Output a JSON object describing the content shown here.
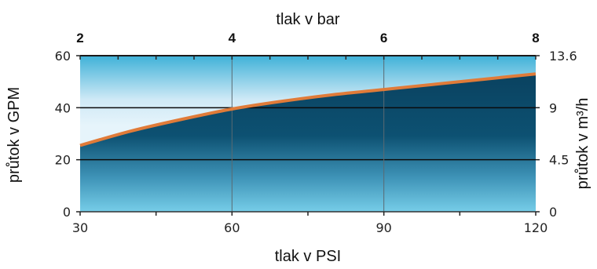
{
  "colors": {
    "curve": "#e07b39",
    "fill_dark": "#0c4a68",
    "bg_light": "#dff1fb",
    "bg_mid": "#5cc0e0"
  },
  "chart_data": {
    "type": "area",
    "title": "",
    "x_bottom": {
      "label": "tlak v PSI",
      "range": [
        30,
        120
      ],
      "ticks": [
        30,
        60,
        90,
        120
      ]
    },
    "x_top": {
      "label": "tlak v bar",
      "range": [
        2,
        8
      ],
      "ticks": [
        2,
        4,
        6,
        8
      ]
    },
    "y_left": {
      "label": "průtok v GPM",
      "range": [
        0,
        60
      ],
      "ticks": [
        0,
        20,
        40,
        60
      ]
    },
    "y_right": {
      "label": "průtok v m³/h",
      "range": [
        0,
        13.6
      ],
      "ticks": [
        "0",
        "4.5",
        "9",
        "13.6"
      ]
    },
    "grid": true,
    "series": [
      {
        "x": [
          30,
          40,
          50,
          60,
          70,
          80,
          90,
          100,
          110,
          120
        ],
        "y": [
          25.5,
          31,
          35.5,
          39.5,
          42.5,
          45,
          47,
          49,
          51,
          53
        ]
      }
    ]
  }
}
